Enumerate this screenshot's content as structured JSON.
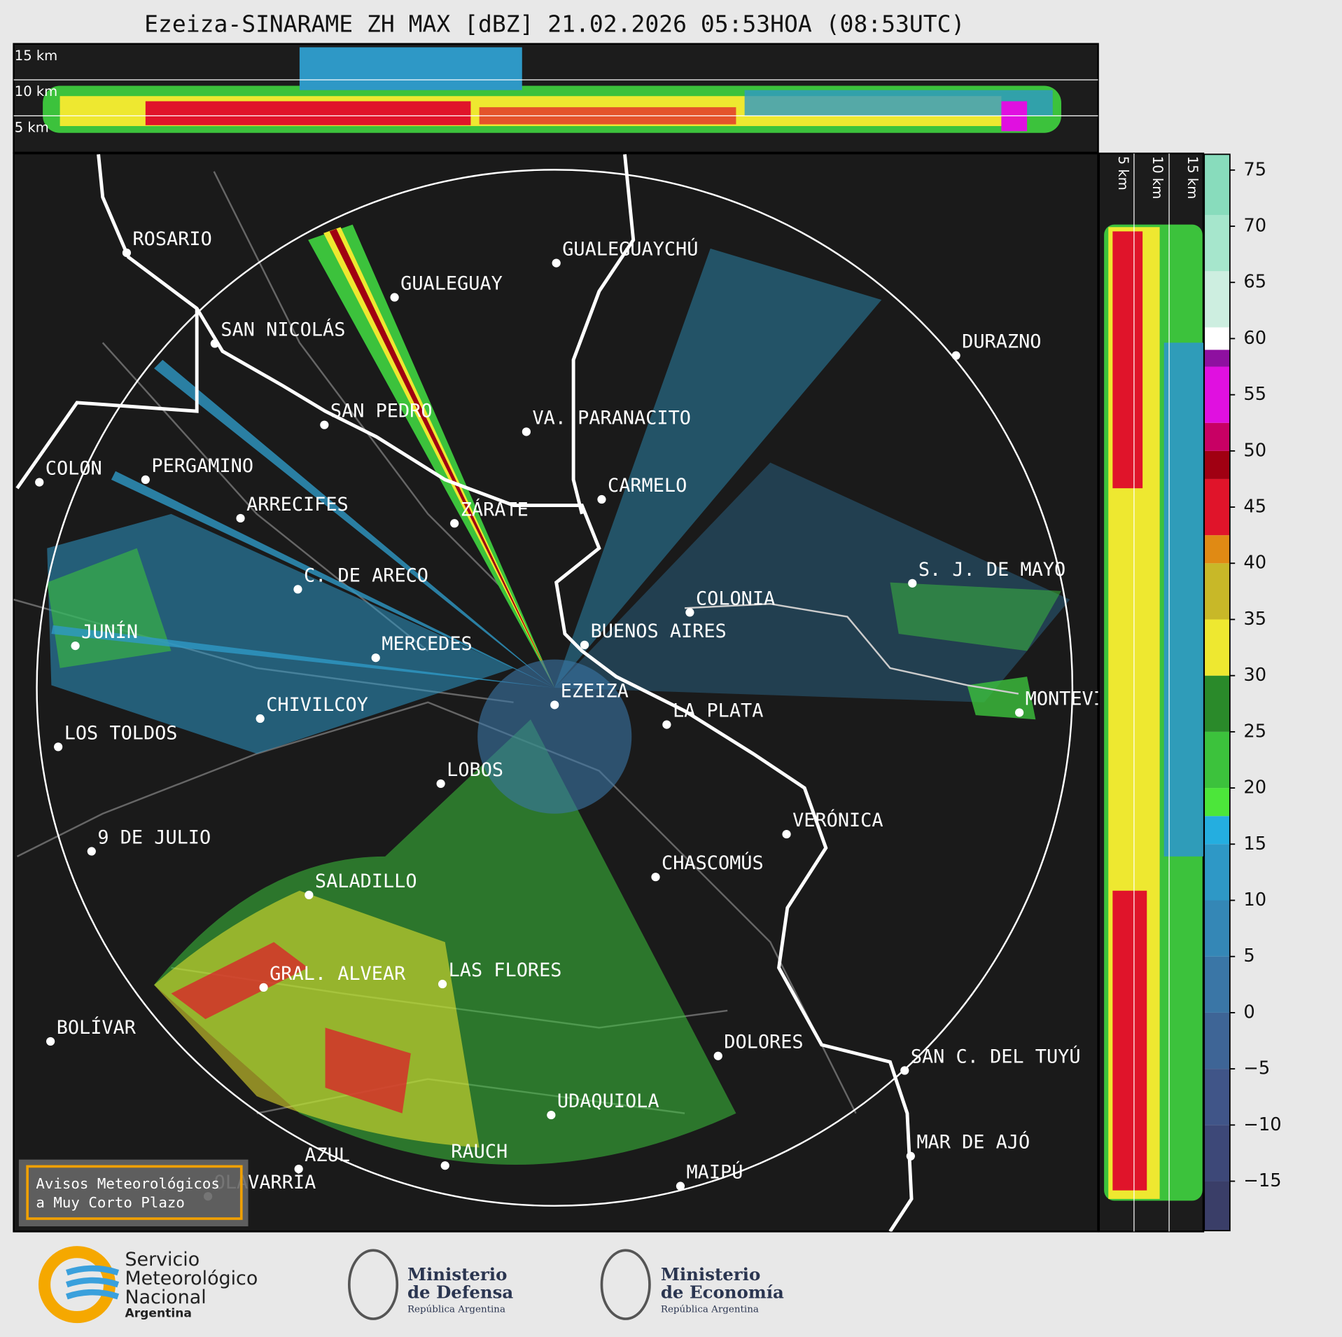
{
  "title": "Ezeiza-SINARAME ZH MAX [dBZ] 21.02.2026 05:53HOA (08:53UTC)",
  "top_section": {
    "height_labels": [
      "15 km",
      "10 km",
      "5 km"
    ]
  },
  "right_section": {
    "height_labels": [
      "5 km",
      "10 km",
      "15 km"
    ]
  },
  "cities": [
    "ROSARIO",
    "GUALEGUAYCHÚ",
    "GUALEGUAY",
    "SAN NICOLÁS",
    "DURAZNO",
    "SAN PEDRO",
    "VA. PARANACITO",
    "COLON",
    "PERGAMINO",
    "CARMELO",
    "ARRECIFES",
    "ZÁRATE",
    "S. J. DE MAYO",
    "C. DE ARECO",
    "COLONIA",
    "BUENOS AIRES",
    "JUNÍN",
    "MERCEDES",
    "EZEIZA",
    "MONTEVIDEO",
    "CHIVILCOY",
    "LA PLATA",
    "LOS TOLDOS",
    "LOBOS",
    "VERÓNICA",
    "9 DE JULIO",
    "CHASCOMÚS",
    "SALADILLO",
    "GRAL. ALVEAR",
    "LAS FLORES",
    "BOLÍVAR",
    "DOLORES",
    "SAN C. DEL TUYÚ",
    "UDAQUIOLA",
    "MAR DE AJÓ",
    "AZUL",
    "RAUCH",
    "OLAVARRÍA",
    "MAIPÚ"
  ],
  "colorbar": {
    "lim": [
      -19.4,
      76.4
    ],
    "ticks": [
      75,
      70,
      65,
      60,
      55,
      50,
      45,
      40,
      35,
      30,
      25,
      20,
      15,
      10,
      5,
      0,
      {
        "value": -5,
        "label": "−5"
      },
      {
        "value": -10,
        "label": "−10"
      },
      {
        "value": -15,
        "label": "−15"
      }
    ],
    "bands": [
      {
        "from": -19.4,
        "color": "#3a3e68"
      },
      {
        "from": -15,
        "color": "#3d4878"
      },
      {
        "from": -10,
        "color": "#405588"
      },
      {
        "from": -5,
        "color": "#3e6596"
      },
      {
        "from": 0,
        "color": "#3a76a6"
      },
      {
        "from": 5,
        "color": "#3487b6"
      },
      {
        "from": 10,
        "color": "#2e98c6"
      },
      {
        "from": 15,
        "color": "#24aee0"
      },
      {
        "from": 17.5,
        "color": "#4ce63a"
      },
      {
        "from": 20,
        "color": "#3cc23c"
      },
      {
        "from": 25,
        "color": "#2a8a2a"
      },
      {
        "from": 30,
        "color": "#eee830"
      },
      {
        "from": 35,
        "color": "#c8b828"
      },
      {
        "from": 40,
        "color": "#e08a14"
      },
      {
        "from": 42.5,
        "color": "#e0142a"
      },
      {
        "from": 47.5,
        "color": "#a00012"
      },
      {
        "from": 50,
        "color": "#c80064"
      },
      {
        "from": 52.5,
        "color": "#e010e0"
      },
      {
        "from": 57.5,
        "color": "#8e10a0"
      },
      {
        "from": 59,
        "color": "#ffffff"
      },
      {
        "from": 61,
        "color": "#cdeee0"
      },
      {
        "from": 66,
        "color": "#a6e6cc"
      },
      {
        "from": 71,
        "color": "#88dcbc"
      }
    ]
  },
  "notice": [
    "Avisos Meteorológicos",
    "a Muy Corto Plazo"
  ],
  "logos": {
    "smn": [
      "Servicio",
      "Meteorológico",
      "Nacional",
      "Argentina"
    ],
    "defensa": [
      "Ministerio",
      "de Defensa",
      "República Argentina"
    ],
    "economia": [
      "Ministerio",
      "de Economía",
      "República Argentina"
    ]
  }
}
